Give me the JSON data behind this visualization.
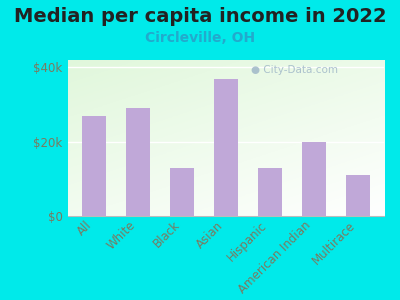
{
  "title": "Median per capita income in 2022",
  "subtitle": "Circleville, OH",
  "categories": [
    "All",
    "White",
    "Black",
    "Asian",
    "Hispanic",
    "American Indian",
    "Multirace"
  ],
  "values": [
    27000,
    29000,
    13000,
    37000,
    13000,
    20000,
    11000
  ],
  "bar_color": "#c0a8d8",
  "background_outer": "#00eaea",
  "title_color": "#222222",
  "subtitle_color": "#22aacc",
  "tick_label_color": "#7a7a60",
  "ylim": [
    0,
    42000
  ],
  "yticks": [
    0,
    20000,
    40000
  ],
  "ytick_labels": [
    "$0",
    "$20k",
    "$40k"
  ],
  "watermark": "City-Data.com",
  "title_fontsize": 14,
  "subtitle_fontsize": 10,
  "tick_fontsize": 8.5
}
